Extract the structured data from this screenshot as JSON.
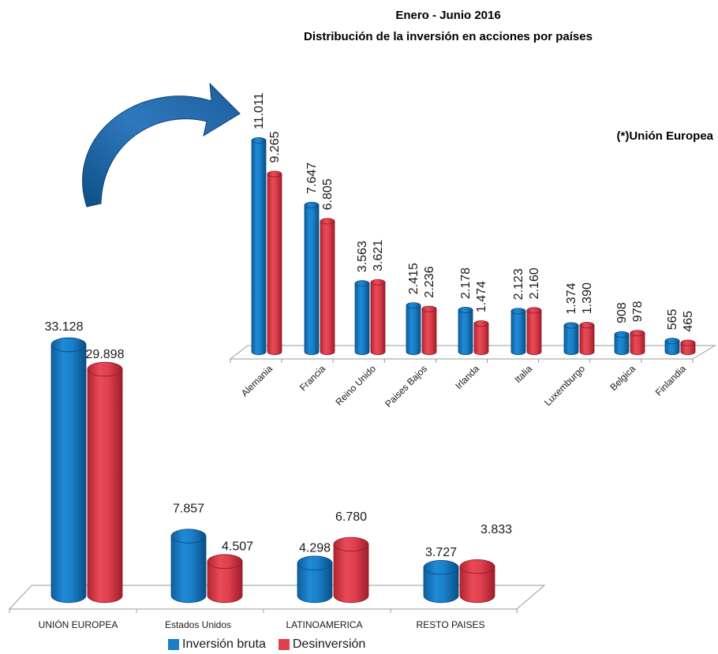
{
  "title_line1": "Enero - Junio 2016",
  "title_line2": "Distribución de la inversión en acciones por países",
  "eu_note": "(*)Unión Europea",
  "colors": {
    "inversion": "#1a7fc8",
    "desinversion": "#e0404e"
  },
  "legend": {
    "inversion_label": "Inversión bruta",
    "desinversion_label": "Desinversión"
  },
  "chart_data": [
    {
      "type": "bar",
      "categories": [
        "UNIÓN EUROPEA",
        "Estados Unidos",
        "LATINOAMERICA",
        "RESTO PAISES"
      ],
      "series": [
        {
          "name": "Inversión bruta",
          "values": [
            33128,
            7857,
            4298,
            3727
          ],
          "labels": [
            "33.128",
            "7.857",
            "4.298",
            "3.727"
          ]
        },
        {
          "name": "Desinversión",
          "values": [
            29898,
            4507,
            6780,
            3833
          ],
          "labels": [
            "29.898",
            "4.507",
            "6.780",
            "3.833"
          ]
        }
      ],
      "legend": "bottom"
    },
    {
      "type": "bar",
      "title": "(*)Unión Europea",
      "categories": [
        "Alemania",
        "Francia",
        "Reino Unido",
        "Paises Bajos",
        "Irlanda",
        "Italia",
        "Luxemburgo",
        "Belgica",
        "Finlandia"
      ],
      "series": [
        {
          "name": "Inversión bruta",
          "values": [
            11011,
            7647,
            3563,
            2415,
            2178,
            2123,
            1374,
            908,
            565
          ],
          "labels": [
            "11.011",
            "7.647",
            "3.563",
            "2.415",
            "2.178",
            "2.123",
            "1.374",
            "908",
            "565"
          ]
        },
        {
          "name": "Desinversión",
          "values": [
            9265,
            6805,
            3621,
            2236,
            1474,
            2160,
            1390,
            978,
            465
          ],
          "labels": [
            "9.265",
            "6.805",
            "3.621",
            "2.236",
            "1.474",
            "2.160",
            "1.390",
            "978",
            "465"
          ]
        }
      ]
    }
  ]
}
